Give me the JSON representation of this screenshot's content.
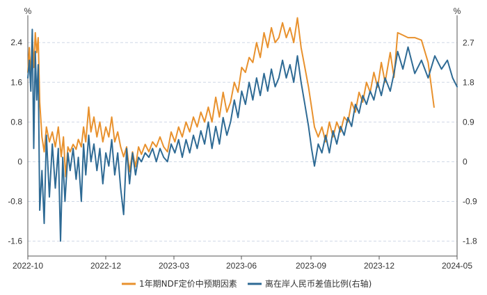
{
  "chart_data": {
    "type": "line",
    "title": "",
    "left_axis": {
      "unit": "%",
      "ylim": [
        -1.9,
        2.95
      ],
      "ticks": [
        -1.6,
        -0.8,
        0,
        0.8,
        1.6,
        2.4
      ],
      "tick_labels": [
        "-1.6",
        "-0.8",
        "0",
        "0.8",
        "1.6",
        "2.4"
      ]
    },
    "right_axis": {
      "unit": "%",
      "ylim": [
        -2.14,
        3.32
      ],
      "ticks": [
        -1.8,
        -0.9,
        0,
        0.9,
        1.8,
        2.7
      ],
      "tick_labels": [
        "-1.8",
        "-0.9",
        "0",
        "0.9",
        "1.8",
        "2.7"
      ]
    },
    "x_axis": {
      "range": [
        "2022-10",
        "2024-05"
      ],
      "ticks": [
        "2022-10",
        "2022-12",
        "2023-03",
        "2023-06",
        "2023-09",
        "2023-12",
        "2024-05"
      ]
    },
    "gridlines": "horizontal dashed",
    "legend_position": "bottom",
    "series": [
      {
        "name": "1年期NDF定价中预期因素",
        "axis": "left",
        "color": "#E8912D",
        "points": [
          [
            "2022-10-01",
            1.8
          ],
          [
            "2022-10-03",
            2.3
          ],
          [
            "2022-10-05",
            1.7
          ],
          [
            "2022-10-07",
            2.5
          ],
          [
            "2022-10-09",
            1.9
          ],
          [
            "2022-10-11",
            2.6
          ],
          [
            "2022-10-13",
            2.2
          ],
          [
            "2022-10-15",
            2.5
          ],
          [
            "2022-10-17",
            1.2
          ],
          [
            "2022-10-20",
            0.5
          ],
          [
            "2022-10-23",
            0.2
          ],
          [
            "2022-10-26",
            0.7
          ],
          [
            "2022-10-30",
            0.4
          ],
          [
            "2022-11-03",
            0.6
          ],
          [
            "2022-11-07",
            0.3
          ],
          [
            "2022-11-11",
            0.7
          ],
          [
            "2022-11-15",
            0.1
          ],
          [
            "2022-11-18",
            0.5
          ],
          [
            "2022-11-21",
            -0.3
          ],
          [
            "2022-11-24",
            0.3
          ],
          [
            "2022-11-27",
            0.2
          ],
          [
            "2022-12-01",
            0.35
          ],
          [
            "2022-12-05",
            0.25
          ],
          [
            "2022-12-08",
            0.45
          ],
          [
            "2022-12-12",
            0.3
          ],
          [
            "2022-12-15",
            0.7
          ],
          [
            "2022-12-18",
            0.4
          ],
          [
            "2022-12-22",
            1.1
          ],
          [
            "2022-12-25",
            0.6
          ],
          [
            "2022-12-29",
            0.9
          ],
          [
            "2023-01-02",
            0.5
          ],
          [
            "2023-01-06",
            0.8
          ],
          [
            "2023-01-10",
            0.4
          ],
          [
            "2023-01-14",
            0.7
          ],
          [
            "2023-01-18",
            0.5
          ],
          [
            "2023-01-22",
            0.9
          ],
          [
            "2023-01-26",
            0.4
          ],
          [
            "2023-01-30",
            0.6
          ],
          [
            "2023-02-03",
            0.3
          ],
          [
            "2023-02-07",
            0.1
          ],
          [
            "2023-02-11",
            0.3
          ],
          [
            "2023-02-15",
            -0.2
          ],
          [
            "2023-02-19",
            0.2
          ],
          [
            "2023-02-23",
            -0.1
          ],
          [
            "2023-02-27",
            0.3
          ],
          [
            "2023-03-03",
            0.15
          ],
          [
            "2023-03-08",
            0.35
          ],
          [
            "2023-03-13",
            0.2
          ],
          [
            "2023-03-18",
            0.4
          ],
          [
            "2023-03-23",
            0.3
          ],
          [
            "2023-03-28",
            0.5
          ],
          [
            "2023-04-02",
            0.3
          ],
          [
            "2023-04-07",
            0.2
          ],
          [
            "2023-04-12",
            0.6
          ],
          [
            "2023-04-17",
            0.4
          ],
          [
            "2023-04-22",
            0.7
          ],
          [
            "2023-04-27",
            0.5
          ],
          [
            "2023-05-02",
            0.8
          ],
          [
            "2023-05-07",
            0.6
          ],
          [
            "2023-05-12",
            0.9
          ],
          [
            "2023-05-17",
            0.7
          ],
          [
            "2023-05-22",
            1.0
          ],
          [
            "2023-05-27",
            0.8
          ],
          [
            "2023-06-01",
            1.1
          ],
          [
            "2023-06-06",
            0.8
          ],
          [
            "2023-06-11",
            1.3
          ],
          [
            "2023-06-16",
            0.9
          ],
          [
            "2023-06-21",
            1.4
          ],
          [
            "2023-06-26",
            1.0
          ],
          [
            "2023-07-01",
            1.2
          ],
          [
            "2023-07-06",
            1.6
          ],
          [
            "2023-07-11",
            1.4
          ],
          [
            "2023-07-16",
            1.9
          ],
          [
            "2023-07-21",
            1.8
          ],
          [
            "2023-07-26",
            2.1
          ],
          [
            "2023-07-31",
            2.0
          ],
          [
            "2023-08-05",
            2.4
          ],
          [
            "2023-08-10",
            2.1
          ],
          [
            "2023-08-15",
            2.6
          ],
          [
            "2023-08-20",
            2.3
          ],
          [
            "2023-08-25",
            2.7
          ],
          [
            "2023-08-30",
            2.4
          ],
          [
            "2023-09-04",
            2.5
          ],
          [
            "2023-09-09",
            2.8
          ],
          [
            "2023-09-14",
            2.5
          ],
          [
            "2023-09-19",
            2.7
          ],
          [
            "2023-09-24",
            2.4
          ],
          [
            "2023-09-29",
            2.9
          ],
          [
            "2023-10-04",
            2.3
          ],
          [
            "2023-10-09",
            1.9
          ],
          [
            "2023-10-14",
            1.5
          ],
          [
            "2023-10-18",
            1.1
          ],
          [
            "2023-10-22",
            0.7
          ],
          [
            "2023-10-27",
            0.5
          ],
          [
            "2023-11-01",
            0.7
          ],
          [
            "2023-11-06",
            0.4
          ],
          [
            "2023-11-11",
            0.8
          ],
          [
            "2023-11-16",
            0.5
          ],
          [
            "2023-11-21",
            0.8
          ],
          [
            "2023-11-26",
            0.6
          ],
          [
            "2023-12-01",
            0.9
          ],
          [
            "2023-12-06",
            0.8
          ],
          [
            "2023-12-11",
            1.2
          ],
          [
            "2023-12-16",
            1.0
          ],
          [
            "2023-12-21",
            1.4
          ],
          [
            "2023-12-26",
            1.2
          ],
          [
            "2023-12-31",
            1.6
          ],
          [
            "2024-01-05",
            1.4
          ],
          [
            "2024-01-10",
            1.8
          ],
          [
            "2024-01-15",
            1.5
          ],
          [
            "2024-01-20",
            2.0
          ],
          [
            "2024-01-25",
            1.6
          ],
          [
            "2024-02-01",
            2.2
          ],
          [
            "2024-02-06",
            1.7
          ],
          [
            "2024-02-11",
            2.6
          ],
          [
            "2024-02-18",
            2.55
          ],
          [
            "2024-02-25",
            2.5
          ],
          [
            "2024-03-05",
            2.5
          ],
          [
            "2024-03-14",
            2.45
          ],
          [
            "2024-03-23",
            2.0
          ],
          [
            "2024-03-31",
            1.1
          ]
        ]
      },
      {
        "name": "离在岸人民币差值比例(右轴)",
        "axis": "right",
        "color": "#2E6A94",
        "points": [
          [
            "2022-10-01",
            1.9
          ],
          [
            "2022-10-03",
            2.3
          ],
          [
            "2022-10-05",
            1.6
          ],
          [
            "2022-10-07",
            3.0
          ],
          [
            "2022-10-09",
            0.3
          ],
          [
            "2022-10-11",
            2.5
          ],
          [
            "2022-10-13",
            1.4
          ],
          [
            "2022-10-15",
            2.2
          ],
          [
            "2022-10-17",
            -1.1
          ],
          [
            "2022-10-20",
            -0.2
          ],
          [
            "2022-10-23",
            -1.4
          ],
          [
            "2022-10-26",
            0.6
          ],
          [
            "2022-10-30",
            -0.8
          ],
          [
            "2022-11-03",
            0.4
          ],
          [
            "2022-11-07",
            -0.6
          ],
          [
            "2022-11-11",
            0.3
          ],
          [
            "2022-11-14",
            -1.8
          ],
          [
            "2022-11-17",
            0.1
          ],
          [
            "2022-11-20",
            -0.9
          ],
          [
            "2022-11-24",
            0.2
          ],
          [
            "2022-11-27",
            -0.2
          ],
          [
            "2022-12-01",
            0.3
          ],
          [
            "2022-12-05",
            -0.4
          ],
          [
            "2022-12-08",
            0.1
          ],
          [
            "2022-12-12",
            -0.9
          ],
          [
            "2022-12-15",
            0.4
          ],
          [
            "2022-12-18",
            -0.3
          ],
          [
            "2022-12-22",
            0.6
          ],
          [
            "2022-12-25",
            0.0
          ],
          [
            "2022-12-29",
            0.4
          ],
          [
            "2023-01-02",
            -0.2
          ],
          [
            "2023-01-06",
            0.3
          ],
          [
            "2023-01-10",
            -0.5
          ],
          [
            "2023-01-14",
            0.2
          ],
          [
            "2023-01-18",
            -0.1
          ],
          [
            "2023-01-22",
            0.5
          ],
          [
            "2023-01-26",
            -0.3
          ],
          [
            "2023-01-30",
            0.2
          ],
          [
            "2023-02-03",
            -0.6
          ],
          [
            "2023-02-07",
            -1.2
          ],
          [
            "2023-02-11",
            0.3
          ],
          [
            "2023-02-15",
            -0.5
          ],
          [
            "2023-02-19",
            0.2
          ],
          [
            "2023-02-23",
            -0.3
          ],
          [
            "2023-02-27",
            0.1
          ],
          [
            "2023-03-03",
            0.0
          ],
          [
            "2023-03-08",
            0.2
          ],
          [
            "2023-03-13",
            0.1
          ],
          [
            "2023-03-18",
            0.3
          ],
          [
            "2023-03-23",
            0.0
          ],
          [
            "2023-03-28",
            0.3
          ],
          [
            "2023-04-02",
            0.1
          ],
          [
            "2023-04-07",
            0.0
          ],
          [
            "2023-04-12",
            0.4
          ],
          [
            "2023-04-17",
            0.2
          ],
          [
            "2023-04-22",
            0.5
          ],
          [
            "2023-04-27",
            0.1
          ],
          [
            "2023-05-02",
            0.5
          ],
          [
            "2023-05-07",
            0.2
          ],
          [
            "2023-05-12",
            0.6
          ],
          [
            "2023-05-17",
            0.3
          ],
          [
            "2023-05-22",
            0.7
          ],
          [
            "2023-05-27",
            0.4
          ],
          [
            "2023-06-01",
            0.9
          ],
          [
            "2023-06-06",
            0.3
          ],
          [
            "2023-06-11",
            0.8
          ],
          [
            "2023-06-16",
            0.4
          ],
          [
            "2023-06-21",
            1.0
          ],
          [
            "2023-06-26",
            0.6
          ],
          [
            "2023-07-01",
            0.9
          ],
          [
            "2023-07-06",
            1.4
          ],
          [
            "2023-07-11",
            1.0
          ],
          [
            "2023-07-16",
            1.6
          ],
          [
            "2023-07-21",
            1.3
          ],
          [
            "2023-07-26",
            1.8
          ],
          [
            "2023-07-31",
            1.4
          ],
          [
            "2023-08-05",
            1.9
          ],
          [
            "2023-08-10",
            1.5
          ],
          [
            "2023-08-15",
            2.0
          ],
          [
            "2023-08-20",
            1.6
          ],
          [
            "2023-08-25",
            2.1
          ],
          [
            "2023-08-30",
            1.7
          ],
          [
            "2023-09-04",
            1.9
          ],
          [
            "2023-09-09",
            2.3
          ],
          [
            "2023-09-14",
            1.9
          ],
          [
            "2023-09-19",
            2.2
          ],
          [
            "2023-09-24",
            1.8
          ],
          [
            "2023-09-29",
            2.4
          ],
          [
            "2023-10-04",
            1.8
          ],
          [
            "2023-10-09",
            1.3
          ],
          [
            "2023-10-14",
            0.8
          ],
          [
            "2023-10-18",
            0.3
          ],
          [
            "2023-10-22",
            -0.1
          ],
          [
            "2023-10-27",
            0.4
          ],
          [
            "2023-11-01",
            0.2
          ],
          [
            "2023-11-06",
            0.6
          ],
          [
            "2023-11-11",
            0.2
          ],
          [
            "2023-11-16",
            0.7
          ],
          [
            "2023-11-21",
            0.4
          ],
          [
            "2023-11-26",
            0.8
          ],
          [
            "2023-12-01",
            0.6
          ],
          [
            "2023-12-06",
            1.0
          ],
          [
            "2023-12-11",
            0.8
          ],
          [
            "2023-12-16",
            1.3
          ],
          [
            "2023-12-21",
            1.1
          ],
          [
            "2023-12-26",
            1.5
          ],
          [
            "2023-12-31",
            1.3
          ],
          [
            "2024-01-05",
            1.6
          ],
          [
            "2024-01-10",
            1.4
          ],
          [
            "2024-01-15",
            1.8
          ],
          [
            "2024-01-20",
            1.5
          ],
          [
            "2024-01-25",
            1.9
          ],
          [
            "2024-02-01",
            1.6
          ],
          [
            "2024-02-06",
            2.0
          ],
          [
            "2024-02-11",
            2.5
          ],
          [
            "2024-02-18",
            2.1
          ],
          [
            "2024-02-25",
            2.6
          ],
          [
            "2024-03-05",
            2.0
          ],
          [
            "2024-03-14",
            2.3
          ],
          [
            "2024-03-23",
            1.9
          ],
          [
            "2024-04-01",
            2.4
          ],
          [
            "2024-04-10",
            2.1
          ],
          [
            "2024-04-18",
            2.3
          ],
          [
            "2024-04-25",
            1.9
          ],
          [
            "2024-05-01",
            1.7
          ]
        ]
      }
    ]
  },
  "legend": {
    "items": [
      {
        "label": "1年期NDF定价中预期因素",
        "color": "#E8912D"
      },
      {
        "label": "离在岸人民币差值比例(右轴)",
        "color": "#2E6A94"
      }
    ]
  }
}
